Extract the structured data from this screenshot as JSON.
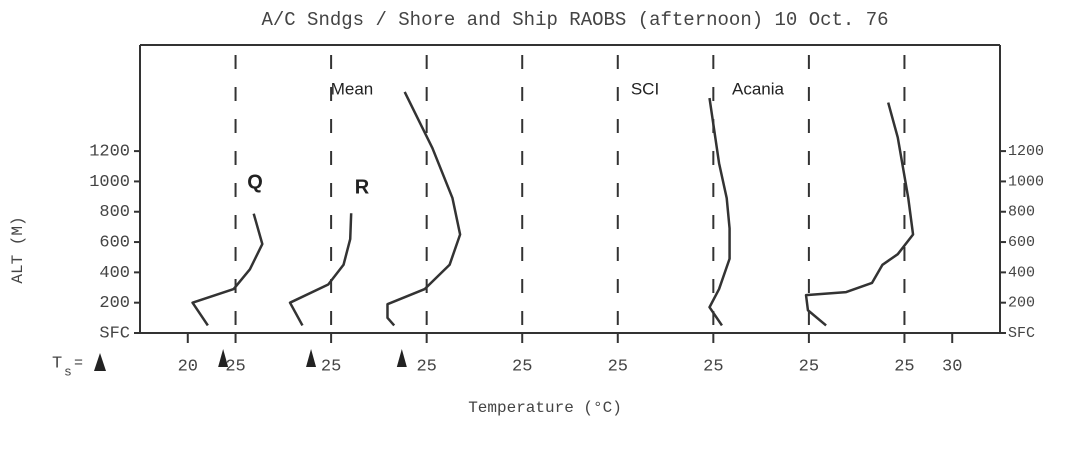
{
  "chart_data": {
    "type": "line",
    "title": "A/C Sndgs /  Shore and Ship RAOBS (afternoon)   10 Oct. 76",
    "xlabel": "Temperature (°C)",
    "ylabel": "ALT (M)",
    "xlim": [
      15,
      105
    ],
    "ylim": [
      0,
      1900
    ],
    "y2lim": [
      0,
      1900
    ],
    "xticks": [
      20,
      25,
      {
        "value": 35,
        "label": "25"
      },
      {
        "value": 45,
        "label": "25"
      },
      {
        "value": 55,
        "label": "25"
      },
      {
        "value": 65,
        "label": "25"
      },
      {
        "value": 75,
        "label": "25"
      },
      {
        "value": 85,
        "label": "25"
      },
      {
        "value": 95,
        "label": "25"
      },
      {
        "value": 100,
        "label": "30"
      }
    ],
    "yticks": [
      {
        "value": 0,
        "label": "SFC"
      },
      200,
      400,
      600,
      800,
      1000,
      1200
    ],
    "y2ticks": [
      {
        "value": 0,
        "label": "SFC"
      },
      200,
      400,
      600,
      800,
      1000,
      1200
    ],
    "grid": "dashed",
    "ts_label": [
      "T",
      "s",
      "="
    ],
    "surface_temps": [
      23.7,
      32.9,
      42.4
    ],
    "color": "#333333",
    "series": [
      {
        "name": "Q",
        "color": "#333333",
        "x": [
          22.1,
          20.5,
          24.8,
          26.5,
          27.8,
          26.9
        ],
        "values": [
          50,
          200,
          290,
          420,
          587,
          787
        ]
      },
      {
        "name": "R",
        "color": "#333333",
        "x": [
          32.0,
          30.7,
          34.7,
          36.3,
          37.0,
          37.1
        ],
        "values": [
          50,
          200,
          320,
          450,
          620,
          790
        ]
      },
      {
        "name": "Mean",
        "color": "#333333",
        "x": [
          41.6,
          40.9,
          40.9,
          44.8,
          47.4,
          48.5,
          47.7,
          45.6,
          42.7
        ],
        "values": [
          50,
          100,
          190,
          290,
          450,
          650,
          890,
          1220,
          1590
        ]
      },
      {
        "name": "SCI",
        "color": "#333333",
        "x": [
          75.9,
          74.6,
          75.6,
          76.7,
          76.7,
          76.4,
          75.6,
          74.6
        ],
        "values": [
          50,
          170,
          290,
          490,
          690,
          890,
          1120,
          1550
        ]
      },
      {
        "name": "Acania",
        "color": "#333333",
        "x": [
          86.8,
          84.9,
          84.7,
          88.9,
          91.6,
          92.7,
          94.3,
          95.9,
          95.4,
          94.3,
          93.3
        ],
        "values": [
          50,
          150,
          250,
          270,
          330,
          450,
          520,
          650,
          890,
          1290,
          1520
        ]
      }
    ]
  }
}
